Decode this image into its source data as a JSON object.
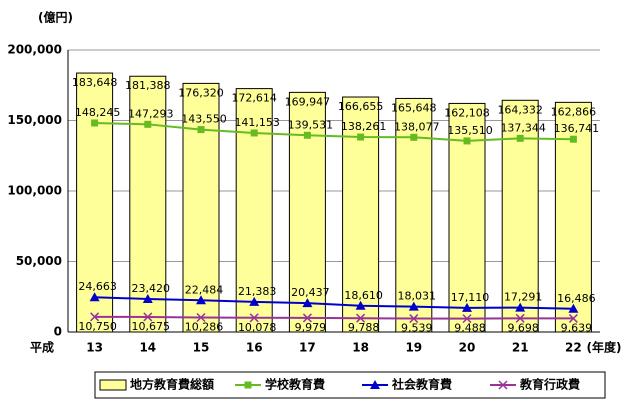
{
  "chart_data": {
    "type": "bar",
    "y_unit": "(億円)",
    "x_prefix": "平成",
    "x_unit": "(年度)",
    "categories": [
      "13",
      "14",
      "15",
      "16",
      "17",
      "18",
      "19",
      "20",
      "21",
      "22"
    ],
    "ylim": [
      0,
      200000
    ],
    "yticks": [
      {
        "value": 0,
        "label": "0"
      },
      {
        "value": 50000,
        "label": "50,000"
      },
      {
        "value": 100000,
        "label": "100,000"
      },
      {
        "value": 150000,
        "label": "150,000"
      },
      {
        "value": 200000,
        "label": "200,000"
      }
    ],
    "grid": true,
    "legend": "bottom",
    "series": [
      {
        "name": "地方教育費総額",
        "type": "bar",
        "color": "#ffff99",
        "values": [
          183648,
          181388,
          176320,
          172614,
          169947,
          166655,
          165648,
          162108,
          164332,
          162866
        ],
        "value_labels": [
          "183,648",
          "181,388",
          "176,320",
          "172,614",
          "169,947",
          "166,655",
          "165,648",
          "162,108",
          "164,332",
          "162,866"
        ]
      },
      {
        "name": "学校教育費",
        "type": "line",
        "marker": "square",
        "color": "#66bb22",
        "values": [
          148245,
          147293,
          143550,
          141153,
          139531,
          138261,
          138077,
          135510,
          137344,
          136741
        ],
        "value_labels": [
          "148,245",
          "147,293",
          "143,550",
          "141,153",
          "139,531",
          "138,261",
          "138,077",
          "135,510",
          "137,344",
          "136,741"
        ]
      },
      {
        "name": "社会教育費",
        "type": "line",
        "marker": "triangle",
        "color": "#0000cc",
        "values": [
          24663,
          23420,
          22484,
          21383,
          20437,
          18610,
          18031,
          17110,
          17291,
          16486
        ],
        "value_labels": [
          "24,663",
          "23,420",
          "22,484",
          "21,383",
          "20,437",
          "18,610",
          "18,031",
          "17,110",
          "17,291",
          "16,486"
        ]
      },
      {
        "name": "教育行政費",
        "type": "line",
        "marker": "x",
        "color": "#993399",
        "values": [
          10750,
          10675,
          10286,
          10078,
          9979,
          9788,
          9539,
          9488,
          9698,
          9639
        ],
        "value_labels": [
          "10,750",
          "10,675",
          "10,286",
          "10,078",
          "9,979",
          "9,788",
          "9,539",
          "9,488",
          "9,698",
          "9,639"
        ]
      }
    ]
  }
}
